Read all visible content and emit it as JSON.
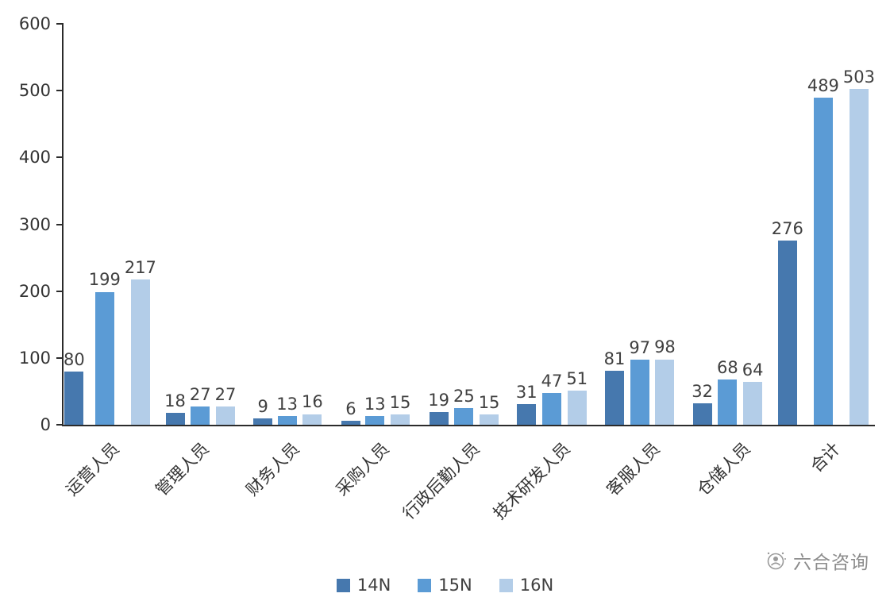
{
  "chart_data": {
    "type": "bar",
    "categories": [
      "运营人员",
      "管理人员",
      "财务人员",
      "采购人员",
      "行政后勤人员",
      "技术研发人员",
      "客服人员",
      "仓储人员",
      "合计"
    ],
    "series": [
      {
        "name": "14N",
        "color": "#4678AE",
        "values": [
          80,
          18,
          9,
          6,
          19,
          31,
          81,
          32,
          276
        ]
      },
      {
        "name": "15N",
        "color": "#5B9BD5",
        "values": [
          199,
          27,
          13,
          13,
          25,
          47,
          97,
          68,
          489
        ]
      },
      {
        "name": "16N",
        "color": "#B3CDE8",
        "values": [
          217,
          27,
          16,
          15,
          15,
          51,
          98,
          64,
          503
        ]
      }
    ],
    "title": "",
    "xlabel": "",
    "ylabel": "",
    "ylim": [
      0,
      600
    ],
    "yticks": [
      0,
      100,
      200,
      300,
      400,
      500,
      600
    ],
    "grid": false,
    "legend_position": "bottom"
  },
  "watermark": {
    "icon": "wechat-logo-icon",
    "text": "六合咨询"
  }
}
